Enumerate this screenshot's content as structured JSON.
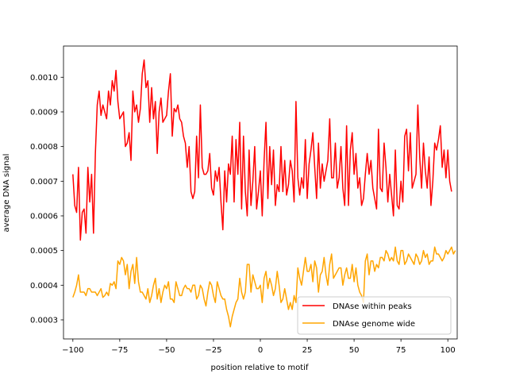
{
  "chart_data": {
    "type": "line",
    "xlabel": "position relative to motif",
    "ylabel": "average DNA signal",
    "xlim": [
      -105,
      105
    ],
    "ylim": [
      0.000245,
      0.00109
    ],
    "xticks": [
      -100,
      -75,
      -50,
      -25,
      0,
      25,
      50,
      75,
      100
    ],
    "xtick_labels": [
      "−100",
      "−75",
      "−50",
      "−25",
      "0",
      "25",
      "50",
      "75",
      "100"
    ],
    "yticks": [
      0.0003,
      0.0004,
      0.0005,
      0.0006,
      0.0007,
      0.0008,
      0.0009,
      0.001
    ],
    "ytick_labels": [
      "0.0003",
      "0.0004",
      "0.0005",
      "0.0006",
      "0.0007",
      "0.0008",
      "0.0009",
      "0.0010"
    ],
    "grid": false,
    "legend_position": "lower-right",
    "series": [
      {
        "name": "DNAse within peaks",
        "color": "#ff0000",
        "x_start": -100,
        "x_step": 1,
        "values": [
          0.00072,
          0.00063,
          0.00061,
          0.00074,
          0.00053,
          0.00061,
          0.00062,
          0.00055,
          0.00074,
          0.00064,
          0.00072,
          0.00055,
          0.00078,
          0.00092,
          0.00096,
          0.00089,
          0.00092,
          0.0009,
          0.00088,
          0.00096,
          0.00092,
          0.00099,
          0.00096,
          0.00102,
          0.00093,
          0.00088,
          0.00089,
          0.0009,
          0.0008,
          0.00081,
          0.00084,
          0.00076,
          0.00096,
          0.0009,
          0.00092,
          0.00087,
          0.00091,
          0.00101,
          0.00105,
          0.00097,
          0.00099,
          0.00087,
          0.00097,
          0.00088,
          0.00093,
          0.00078,
          0.0009,
          0.00094,
          0.00087,
          0.00088,
          0.00089,
          0.00096,
          0.00101,
          0.00083,
          0.00091,
          0.0009,
          0.00092,
          0.00088,
          0.00087,
          0.00083,
          0.00081,
          0.00074,
          0.0008,
          0.00067,
          0.00065,
          0.00067,
          0.00083,
          0.00071,
          0.00092,
          0.00074,
          0.00072,
          0.00072,
          0.00073,
          0.00078,
          0.00068,
          0.00066,
          0.00073,
          0.0007,
          0.00074,
          0.00064,
          0.00056,
          0.00073,
          0.00064,
          0.00075,
          0.00072,
          0.00083,
          0.00064,
          0.00082,
          0.00072,
          0.00087,
          0.00062,
          0.00083,
          0.00067,
          0.0006,
          0.00079,
          0.00063,
          0.0007,
          0.0008,
          0.00062,
          0.00067,
          0.00073,
          0.0006,
          0.00076,
          0.00087,
          0.00065,
          0.0008,
          0.00069,
          0.00079,
          0.00063,
          0.00069,
          0.00067,
          0.0008,
          0.00067,
          0.00076,
          0.00066,
          0.00069,
          0.00076,
          0.00073,
          0.00064,
          0.00093,
          0.00071,
          0.00066,
          0.00071,
          0.00068,
          0.00082,
          0.00065,
          0.00075,
          0.00079,
          0.00084,
          0.00074,
          0.00065,
          0.00081,
          0.00068,
          0.00075,
          0.0007,
          0.00073,
          0.00076,
          0.00088,
          0.00071,
          0.00071,
          0.00081,
          0.00068,
          0.00071,
          0.0008,
          0.00068,
          0.00063,
          0.00086,
          0.00063,
          0.00079,
          0.00084,
          0.00072,
          0.00078,
          0.00068,
          0.00071,
          0.00063,
          0.00065,
          0.00072,
          0.00078,
          0.00072,
          0.00076,
          0.00068,
          0.00065,
          0.00062,
          0.00085,
          0.00068,
          0.00067,
          0.00081,
          0.00074,
          0.00064,
          0.00072,
          0.00066,
          0.0006,
          0.00079,
          0.00063,
          0.00062,
          0.0007,
          0.00064,
          0.00083,
          0.00085,
          0.00073,
          0.00084,
          0.00068,
          0.0007,
          0.00072,
          0.00092,
          0.00077,
          0.00068,
          0.00081,
          0.00073,
          0.00068,
          0.00077,
          0.00063,
          0.0007,
          0.00081,
          0.00079,
          0.00082,
          0.00086,
          0.00074,
          0.00079,
          0.00071,
          0.00079,
          0.0007,
          0.00067
        ]
      },
      {
        "name": "DNAse genome wide",
        "color": "#ffa500",
        "x_start": -100,
        "x_step": 1,
        "values": [
          0.000365,
          0.00038,
          0.0004,
          0.00043,
          0.00038,
          0.00038,
          0.00038,
          0.00037,
          0.00039,
          0.00039,
          0.00038,
          0.00038,
          0.00038,
          0.00037,
          0.00038,
          0.00039,
          0.000365,
          0.00037,
          0.00038,
          0.00037,
          0.000405,
          0.0004,
          0.00041,
          0.00039,
          0.00047,
          0.00046,
          0.00048,
          0.00047,
          0.00043,
          0.00046,
          0.00039,
          0.00044,
          0.00046,
          0.000405,
          0.00048,
          0.00041,
          0.00038,
          0.00038,
          0.00037,
          0.00036,
          0.00039,
          0.00035,
          0.00037,
          0.0004,
          0.00042,
          0.00036,
          0.00039,
          0.00035,
          0.00038,
          0.0004,
          0.00039,
          0.00041,
          0.00036,
          0.00036,
          0.00035,
          0.00041,
          0.00039,
          0.00037,
          0.00037,
          0.00039,
          0.0004,
          0.00039,
          0.00039,
          0.00038,
          0.0004,
          0.0004,
          0.00036,
          0.00037,
          0.0004,
          0.00039,
          0.00036,
          0.00034,
          0.00038,
          0.00041,
          0.0004,
          0.00037,
          0.00035,
          0.00041,
          0.00039,
          0.00037,
          0.00036,
          0.00036,
          0.00033,
          0.00031,
          0.00028,
          0.00031,
          0.00033,
          0.00035,
          0.00036,
          0.00042,
          0.00038,
          0.00036,
          0.00038,
          0.00046,
          0.00046,
          0.00038,
          0.00043,
          0.00041,
          0.00039,
          0.00039,
          0.0004,
          0.00035,
          0.00042,
          0.00044,
          0.00039,
          0.00042,
          0.0004,
          0.00037,
          0.00039,
          0.00044,
          0.0004,
          0.00035,
          0.00036,
          0.00039,
          0.00036,
          0.00033,
          0.00035,
          0.00033,
          0.00037,
          0.00035,
          0.00045,
          0.00042,
          0.0004,
          0.00044,
          0.00048,
          0.00044,
          0.00044,
          0.00046,
          0.00041,
          0.00047,
          0.00045,
          0.00038,
          0.00043,
          0.00044,
          0.00048,
          0.00043,
          0.0004,
          0.00046,
          0.00049,
          0.00042,
          0.00043,
          0.00044,
          0.00045,
          0.00045,
          0.0004,
          0.00043,
          0.00045,
          0.00042,
          0.00042,
          0.00046,
          0.00041,
          0.00045,
          0.0004,
          0.00038,
          0.00037,
          0.00035,
          0.00047,
          0.00049,
          0.00043,
          0.00047,
          0.00047,
          0.00044,
          0.00046,
          0.00045,
          0.00048,
          0.00048,
          0.00047,
          0.0005,
          0.00049,
          0.00047,
          0.00048,
          0.00047,
          0.00051,
          0.00047,
          0.00046,
          0.0005,
          0.0005,
          0.00046,
          0.00047,
          0.00049,
          0.00048,
          0.00047,
          0.00046,
          0.00049,
          0.00048,
          0.00046,
          0.00047,
          0.0005,
          0.00048,
          0.00049,
          0.00046,
          0.00047,
          0.00047,
          0.00051,
          0.00049,
          0.00049,
          0.00048,
          0.00047,
          0.00048,
          0.0005,
          0.00049,
          0.0005,
          0.00051,
          0.00049,
          0.0005
        ]
      }
    ]
  }
}
